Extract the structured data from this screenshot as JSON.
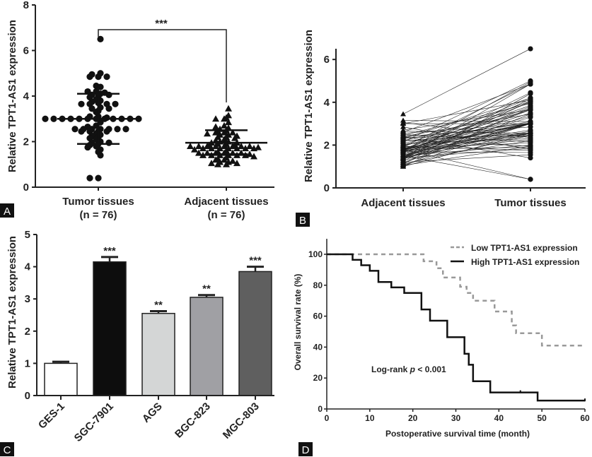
{
  "chart_data": [
    {
      "panel": "A",
      "type": "scatter",
      "ylabel": "Relative TPT1-AS1 expression",
      "ylim": [
        0,
        8
      ],
      "yticks": [
        "0",
        "2",
        "4",
        "6",
        "8"
      ],
      "categories": [
        {
          "name": "Tumor tissues",
          "n": "(n = 76)"
        },
        {
          "name": "Adjacent tissues",
          "n": "(n = 76)"
        }
      ],
      "significance": "***",
      "series": [
        {
          "name": "Tumor tissues",
          "marker": "circle",
          "mean": 3.0,
          "sd": [
            1.9,
            4.1
          ],
          "values": [
            6.5,
            5.0,
            4.95,
            4.85,
            4.85,
            4.85,
            4.45,
            4.4,
            4.2,
            4.2,
            4.15,
            4.1,
            4.05,
            4.0,
            4.05,
            3.95,
            3.85,
            3.8,
            3.75,
            3.7,
            3.65,
            3.65,
            3.65,
            3.65,
            3.5,
            3.45,
            3.45,
            3.35,
            3.3,
            3.1,
            3.1,
            3.05,
            3.0,
            3.0,
            3.0,
            3.0,
            3.0,
            3.0,
            3.0,
            3.0,
            3.0,
            3.0,
            3.0,
            3.0,
            2.85,
            2.7,
            2.65,
            2.55,
            2.55,
            2.55,
            2.55,
            2.55,
            2.55,
            2.55,
            2.45,
            2.45,
            2.45,
            2.45,
            2.35,
            2.3,
            2.25,
            2.2,
            2.15,
            2.1,
            2.0,
            1.95,
            1.95,
            1.9,
            1.85,
            1.8,
            1.75,
            1.65,
            1.55,
            1.4,
            0.4,
            0.4
          ]
        },
        {
          "name": "Adjacent tissues",
          "marker": "triangle",
          "mean": 1.95,
          "sd": [
            1.45,
            2.5
          ],
          "values": [
            3.45,
            3.15,
            3.05,
            3.0,
            3.0,
            2.85,
            2.7,
            2.65,
            2.6,
            2.55,
            2.5,
            2.45,
            2.4,
            2.4,
            2.4,
            2.35,
            2.3,
            2.3,
            2.25,
            2.2,
            2.2,
            2.15,
            2.1,
            2.05,
            2.0,
            2.0,
            1.95,
            1.95,
            1.9,
            1.9,
            1.85,
            1.85,
            1.8,
            1.8,
            1.8,
            1.8,
            1.8,
            1.8,
            1.8,
            1.8,
            1.75,
            1.7,
            1.7,
            1.7,
            1.7,
            1.7,
            1.7,
            1.7,
            1.65,
            1.6,
            1.55,
            1.5,
            1.5,
            1.5,
            1.5,
            1.5,
            1.5,
            1.45,
            1.4,
            1.4,
            1.4,
            1.4,
            1.4,
            1.4,
            1.35,
            1.3,
            1.25,
            1.2,
            1.2,
            1.15,
            1.1,
            1.1,
            1.05,
            1.05,
            1.0,
            1.0
          ]
        }
      ]
    },
    {
      "panel": "B",
      "type": "line",
      "description_note": "paired before-after lines, Adjacent vs Tumor",
      "ylabel": "Relative TPT1-AS1 expression",
      "ylim": [
        0,
        6.5
      ],
      "yticks": [
        "0",
        "2",
        "4",
        "6"
      ],
      "categories": [
        "Adjacent tissues",
        "Tumor tissues"
      ]
    },
    {
      "panel": "C",
      "type": "bar",
      "ylabel": "Relative TPT1-AS1 expression",
      "ylim": [
        0,
        5
      ],
      "yticks": [
        "0",
        "1",
        "2",
        "3",
        "4",
        "5"
      ],
      "categories": [
        "GES-1",
        "SGC-7901",
        "AGS",
        "BGC-823",
        "MGC-803"
      ],
      "values": [
        1.0,
        4.15,
        2.55,
        3.05,
        3.85
      ],
      "errors": [
        0.05,
        0.15,
        0.07,
        0.07,
        0.15
      ],
      "significance": [
        "",
        "***",
        "**",
        "**",
        "***"
      ],
      "colors": [
        "#ffffff",
        "#0d0d0d",
        "#d4d6d6",
        "#a0a0a4",
        "#5f5f5f"
      ]
    },
    {
      "panel": "D",
      "type": "line",
      "xlabel": "Postoperative survival time (month)",
      "ylabel": "Overall survival rate (%)",
      "xlim": [
        0,
        60
      ],
      "ylim": [
        0,
        110
      ],
      "xticks": [
        "0",
        "10",
        "20",
        "30",
        "40",
        "50",
        "60"
      ],
      "yticks": [
        "0",
        "20",
        "40",
        "60",
        "80",
        "100"
      ],
      "annotation": {
        "prefix": "Log-rank ",
        "p": "p",
        "suffix": " < 0.001"
      },
      "series": [
        {
          "name": "Low TPT1-AS1 expression",
          "color": "#999999",
          "style": "dashed",
          "steps": [
            [
              0,
              100
            ],
            [
              22.5,
              95.5
            ],
            [
              25.5,
              91
            ],
            [
              27,
              85
            ],
            [
              31,
              79
            ],
            [
              32.5,
              75
            ],
            [
              34,
              70
            ],
            [
              39,
              63
            ],
            [
              43,
              54
            ],
            [
              44,
              49
            ],
            [
              50,
              41
            ],
            [
              60,
              41
            ]
          ]
        },
        {
          "name": "High TPT1-AS1 expression",
          "color": "#111111",
          "style": "solid",
          "steps": [
            [
              0,
              100
            ],
            [
              6,
              96.4
            ],
            [
              8,
              92.9
            ],
            [
              10,
              89.3
            ],
            [
              12,
              82.1
            ],
            [
              15,
              78.6
            ],
            [
              18,
              75
            ],
            [
              22,
              64.3
            ],
            [
              24,
              57.1
            ],
            [
              28,
              46.4
            ],
            [
              32,
              35.7
            ],
            [
              33,
              28.6
            ],
            [
              34,
              17.9
            ],
            [
              38,
              10.7
            ],
            [
              49,
              5.4
            ],
            [
              60,
              5.4
            ]
          ],
          "censored": [
            45,
            60
          ]
        }
      ]
    }
  ],
  "panel_labels": [
    "A",
    "B",
    "C",
    "D"
  ]
}
